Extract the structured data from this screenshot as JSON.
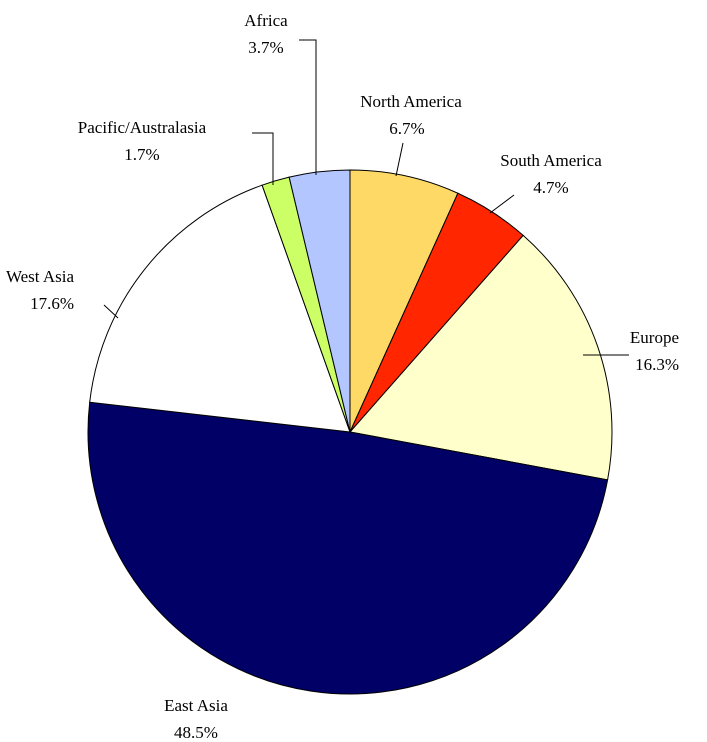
{
  "chart_data": {
    "type": "pie",
    "title": "",
    "start_angle_deg": 0,
    "direction": "clockwise",
    "slices": [
      {
        "name": "North America",
        "value": 6.7,
        "label": "6.7%",
        "color": "#FFD966"
      },
      {
        "name": "South America",
        "value": 4.7,
        "label": "4.7%",
        "color": "#FF2600"
      },
      {
        "name": "Europe",
        "value": 16.3,
        "label": "16.3%",
        "color": "#FFFFCC"
      },
      {
        "name": "East Asia",
        "value": 48.5,
        "label": "48.5%",
        "color": "#000066"
      },
      {
        "name": "West Asia",
        "value": 17.6,
        "label": "17.6%",
        "color": "#FFFFFF"
      },
      {
        "name": "Pacific/Australasia",
        "value": 1.7,
        "label": "1.7%",
        "color": "#CCFF66"
      },
      {
        "name": "Africa",
        "value": 3.7,
        "label": "3.7%",
        "color": "#B3C6FF"
      }
    ],
    "legend": "none",
    "labels": "outside with leader lines"
  }
}
